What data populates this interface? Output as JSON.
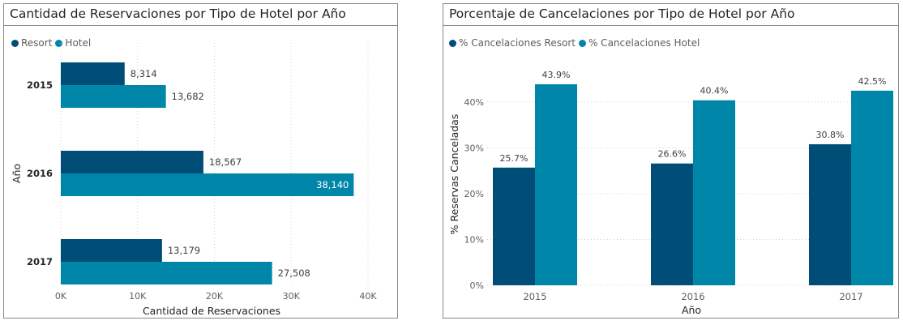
{
  "colors": {
    "resort": "#004d77",
    "hotel": "#0086a9",
    "grid": "#d0d0d0",
    "text": "#605e5c",
    "label": "#404040"
  },
  "charts": [
    {
      "panel_title": "Cantidad de Reservaciones por Tipo de Hotel por Año",
      "legend": [
        {
          "label": "Resort",
          "color": "#004d77"
        },
        {
          "label": "Hotel",
          "color": "#0086a9"
        }
      ]
    },
    {
      "panel_title": "Porcentaje de Cancelaciones por Tipo de Hotel por Año",
      "legend": [
        {
          "label": "% Cancelaciones Resort",
          "color": "#004d77"
        },
        {
          "label": "% Cancelaciones Hotel",
          "color": "#0086a9"
        }
      ]
    }
  ],
  "chart_data": [
    {
      "type": "bar",
      "orientation": "horizontal",
      "title": "Cantidad de Reservaciones por Tipo de Hotel por Año",
      "categories": [
        "2015",
        "2016",
        "2017"
      ],
      "series": [
        {
          "name": "Resort",
          "values": [
            8314,
            18567,
            13179
          ],
          "labels": [
            "8,314",
            "18,567",
            "13,179"
          ]
        },
        {
          "name": "Hotel",
          "values": [
            13682,
            38140,
            27508
          ],
          "labels": [
            "13,682",
            "38,140",
            "27,508"
          ]
        }
      ],
      "xlabel": "Cantidad de Reservaciones",
      "ylabel": "Año",
      "xlim": [
        0,
        40000
      ],
      "xticks": [
        0,
        10000,
        20000,
        30000,
        40000
      ],
      "xtick_labels": [
        "0K",
        "10K",
        "20K",
        "30K",
        "40K"
      ],
      "grid": true,
      "legend_position": "top-left"
    },
    {
      "type": "bar",
      "orientation": "vertical",
      "title": "Porcentaje de Cancelaciones por Tipo de Hotel por Año",
      "categories": [
        "2015",
        "2016",
        "2017"
      ],
      "series": [
        {
          "name": "% Cancelaciones Resort",
          "values": [
            25.7,
            26.6,
            30.8
          ],
          "labels": [
            "25.7%",
            "26.6%",
            "30.8%"
          ]
        },
        {
          "name": "% Cancelaciones Hotel",
          "values": [
            43.9,
            40.4,
            42.5
          ],
          "labels": [
            "43.9%",
            "40.4%",
            "42.5%"
          ]
        }
      ],
      "xlabel": "Año",
      "ylabel": "% Reservas Canceladas",
      "ylim": [
        0,
        45
      ],
      "yticks": [
        0,
        10,
        20,
        30,
        40
      ],
      "ytick_labels": [
        "0%",
        "10%",
        "20%",
        "30%",
        "40%"
      ],
      "grid": true,
      "legend_position": "top-left"
    }
  ]
}
